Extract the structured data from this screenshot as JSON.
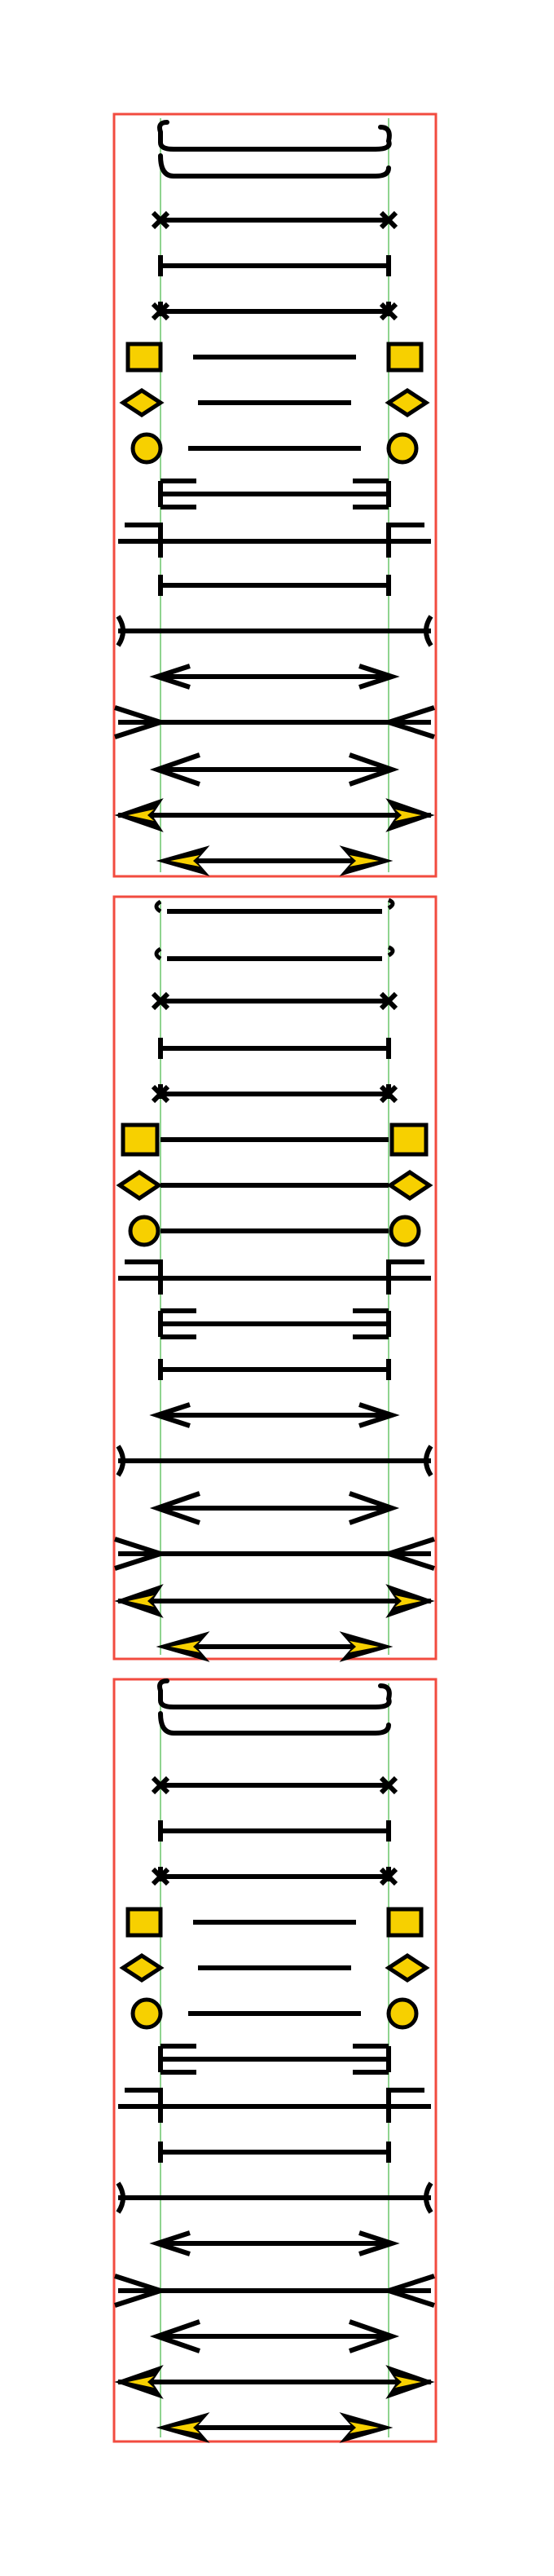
{
  "colors": {
    "background": "#ffffff",
    "panel_frame": "#f24b3f",
    "guide_line": "#8fd48f",
    "stroke": "#000000",
    "marker_fill": "#f7d000"
  },
  "panels": [
    {
      "id": "panel-1",
      "rows": [
        {
          "left": "hook",
          "right": "hook"
        },
        {
          "left": "cross",
          "right": "cross"
        },
        {
          "left": "tick",
          "right": "tick"
        },
        {
          "left": "star",
          "right": "star"
        },
        {
          "left": "square",
          "right": "square"
        },
        {
          "left": "diamond",
          "right": "diamond"
        },
        {
          "left": "circle",
          "right": "circle"
        },
        {
          "left": "crowfoot",
          "right": "crowfoot"
        },
        {
          "left": "step",
          "right": "step"
        },
        {
          "left": "tee",
          "right": "tee"
        },
        {
          "left": "curve",
          "right": "curve"
        },
        {
          "left": "arrow",
          "right": "arrow"
        },
        {
          "left": "open-vee",
          "right": "open-vee"
        },
        {
          "left": "wide-arrow",
          "right": "wide-arrow"
        },
        {
          "left": "filled-arrow",
          "right": "filled-arrow"
        },
        {
          "left": "filled-arrow",
          "right": "filled-arrow"
        }
      ]
    },
    {
      "id": "panel-2",
      "rows": [
        {
          "left": "half-hook",
          "right": "half-hook"
        },
        {
          "left": "half-hook",
          "right": "half-hook"
        },
        {
          "left": "cross",
          "right": "cross"
        },
        {
          "left": "tick",
          "right": "tick"
        },
        {
          "left": "star",
          "right": "star"
        },
        {
          "left": "square",
          "right": "square"
        },
        {
          "left": "diamond",
          "right": "diamond"
        },
        {
          "left": "circle",
          "right": "circle"
        },
        {
          "left": "step",
          "right": "step"
        },
        {
          "left": "crowfoot",
          "right": "crowfoot"
        },
        {
          "left": "tee",
          "right": "tee"
        },
        {
          "left": "arrow",
          "right": "arrow"
        },
        {
          "left": "curve",
          "right": "curve"
        },
        {
          "left": "wide-arrow",
          "right": "wide-arrow"
        },
        {
          "left": "open-vee",
          "right": "open-vee"
        },
        {
          "left": "filled-arrow",
          "right": "filled-arrow"
        },
        {
          "left": "filled-arrow",
          "right": "filled-arrow"
        }
      ]
    },
    {
      "id": "panel-3",
      "rows": [
        {
          "left": "hook",
          "right": "hook"
        },
        {
          "left": "cross",
          "right": "cross"
        },
        {
          "left": "tick",
          "right": "tick"
        },
        {
          "left": "star",
          "right": "star"
        },
        {
          "left": "square",
          "right": "square"
        },
        {
          "left": "diamond",
          "right": "diamond"
        },
        {
          "left": "circle",
          "right": "circle"
        },
        {
          "left": "crowfoot",
          "right": "crowfoot"
        },
        {
          "left": "step",
          "right": "step"
        },
        {
          "left": "tee",
          "right": "tee"
        },
        {
          "left": "curve",
          "right": "curve"
        },
        {
          "left": "arrow",
          "right": "arrow"
        },
        {
          "left": "open-vee",
          "right": "open-vee"
        },
        {
          "left": "wide-arrow",
          "right": "wide-arrow"
        },
        {
          "left": "filled-arrow",
          "right": "filled-arrow"
        },
        {
          "left": "filled-arrow",
          "right": "filled-arrow"
        }
      ]
    }
  ]
}
